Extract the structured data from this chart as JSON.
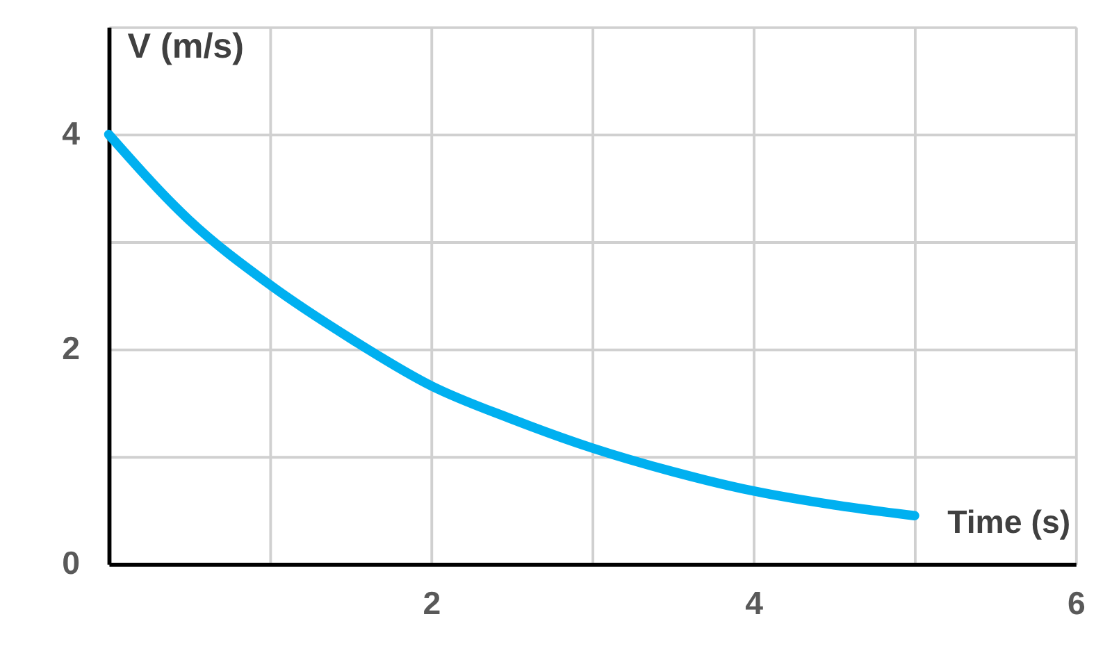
{
  "chart_data": {
    "type": "line",
    "xlabel": "Time (s)",
    "ylabel": "V (m/s)",
    "x": [
      0,
      0.5,
      1,
      1.5,
      2,
      2.5,
      3,
      3.5,
      4,
      4.5,
      5
    ],
    "series": [
      {
        "color": "#00b0f0",
        "values": [
          4,
          3.2,
          2.6,
          2.1,
          1.66,
          1.35,
          1.08,
          0.86,
          0.68,
          0.55,
          0.45
        ]
      }
    ],
    "xlim": [
      0,
      6
    ],
    "ylim": [
      0,
      5
    ],
    "xticks": [
      {
        "value": 0,
        "label": null
      },
      {
        "value": 1,
        "label": null
      },
      2,
      {
        "value": 3,
        "label": null
      },
      4,
      {
        "value": 5,
        "label": null
      },
      6
    ],
    "yticks": [
      0,
      {
        "value": 1,
        "label": null
      },
      2,
      {
        "value": 3,
        "label": null
      },
      4,
      {
        "value": 5,
        "label": null
      }
    ],
    "grid": true,
    "line_style": "solid"
  }
}
